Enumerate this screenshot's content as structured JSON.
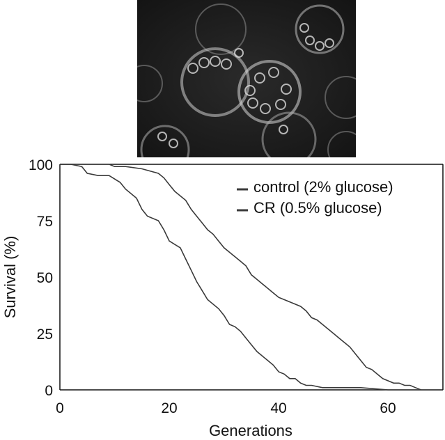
{
  "image": {
    "description_icon": "yeast-cells-fluorescence-micrograph"
  },
  "chart_data": {
    "type": "line",
    "xlabel": "Generations",
    "ylabel": "Survival (%)",
    "xlim": [
      0,
      70
    ],
    "ylim": [
      0,
      100
    ],
    "xticks": [
      "0",
      "20",
      "40",
      "60"
    ],
    "yticks": [
      "0",
      "25",
      "50",
      "75",
      "100"
    ],
    "grid": false,
    "legend_position": "top-right",
    "series": [
      {
        "name": "control (2% glucose)",
        "color": "#3a3a3a",
        "x": [
          0,
          2,
          4,
          5,
          7,
          9,
          11,
          12,
          14,
          15,
          16,
          18,
          19,
          20,
          22,
          23,
          24,
          25,
          26,
          27,
          29,
          30,
          31,
          32,
          33,
          34,
          35,
          36,
          37,
          38,
          39,
          40,
          41,
          42,
          43,
          44,
          45,
          46,
          48,
          55,
          60,
          66
        ],
        "y": [
          100,
          100,
          99,
          96,
          95,
          95,
          92,
          89,
          85,
          80,
          77,
          75,
          71,
          66,
          63,
          58,
          53,
          48,
          44,
          40,
          36,
          33,
          29,
          28,
          26,
          23,
          20,
          17,
          15,
          13,
          11,
          8,
          7,
          5,
          5,
          3,
          2,
          2,
          1,
          1,
          0,
          0
        ]
      },
      {
        "name": "CR (0.5% glucose)",
        "color": "#3a3a3a",
        "x": [
          0,
          5,
          9,
          10,
          12,
          15,
          18,
          19,
          20,
          21,
          22,
          23,
          24,
          25,
          26,
          27,
          28,
          29,
          30,
          31,
          32,
          33,
          34,
          35,
          36,
          37,
          38,
          39,
          40,
          41,
          42,
          43,
          44,
          45,
          46,
          47,
          48,
          49,
          50,
          51,
          52,
          53,
          54,
          55,
          56,
          57,
          58,
          59,
          60,
          61,
          62,
          63,
          64,
          65,
          66
        ],
        "y": [
          100,
          100,
          100,
          99,
          99,
          98,
          96,
          94,
          91,
          88,
          86,
          84,
          80,
          77,
          74,
          71,
          69,
          66,
          63,
          61,
          59,
          57,
          55,
          51,
          49,
          47,
          45,
          43,
          41,
          40,
          39,
          38,
          37,
          35,
          32,
          31,
          29,
          27,
          25,
          23,
          21,
          19,
          16,
          13,
          10,
          9,
          7,
          5,
          4,
          3,
          3,
          2,
          2,
          1,
          0
        ]
      }
    ]
  }
}
